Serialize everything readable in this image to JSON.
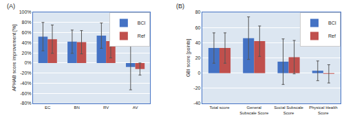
{
  "chart_data": [
    {
      "type": "bar",
      "title": "(A)",
      "ylabel": "APHAB score improvement [%]",
      "categories": [
        "EC",
        "BN",
        "RV",
        "AV"
      ],
      "series": [
        {
          "name": "BCI",
          "color": "#4472C4",
          "values": [
            52,
            42,
            54,
            -8
          ],
          "errors": [
            28,
            23,
            25,
            45
          ]
        },
        {
          "name": "Ref",
          "color": "#C0504D",
          "values": [
            47,
            41,
            43,
            -12
          ],
          "errors": [
            28,
            23,
            33,
            12
          ]
        }
      ],
      "ylim": [
        -80,
        100
      ],
      "yticks": [
        {
          "value": -80,
          "label": "-80%"
        },
        {
          "value": -60,
          "label": "-60%"
        },
        {
          "value": -40,
          "label": "-40%"
        },
        {
          "value": -20,
          "label": "-20%"
        },
        {
          "value": 0,
          "label": "0%"
        },
        {
          "value": 20,
          "label": "20%"
        },
        {
          "value": 40,
          "label": "40%"
        },
        {
          "value": 60,
          "label": "60%"
        },
        {
          "value": 80,
          "label": "80%"
        },
        {
          "value": 100,
          "label": "100%"
        }
      ],
      "grid": true,
      "legend": "upper right"
    },
    {
      "type": "bar",
      "title": "(B)",
      "ylabel": "GBI score [points]",
      "categories": [
        "Total score",
        "General\nSubscale Score",
        "Social Subscale\nScore",
        "Physical Health\nScore"
      ],
      "series": [
        {
          "name": "BCI",
          "color": "#4472C4",
          "values": [
            33,
            46,
            15,
            3
          ],
          "errors": [
            20,
            28,
            30,
            13
          ]
        },
        {
          "name": "Ref",
          "color": "#C0504D",
          "values": [
            33,
            42,
            21,
            -1
          ],
          "errors": [
            20,
            20,
            22,
            12
          ]
        }
      ],
      "ylim": [
        -40,
        80
      ],
      "yticks": [
        -40,
        -20,
        0,
        20,
        40,
        60,
        80
      ],
      "grid": true,
      "legend": "upper right"
    }
  ]
}
